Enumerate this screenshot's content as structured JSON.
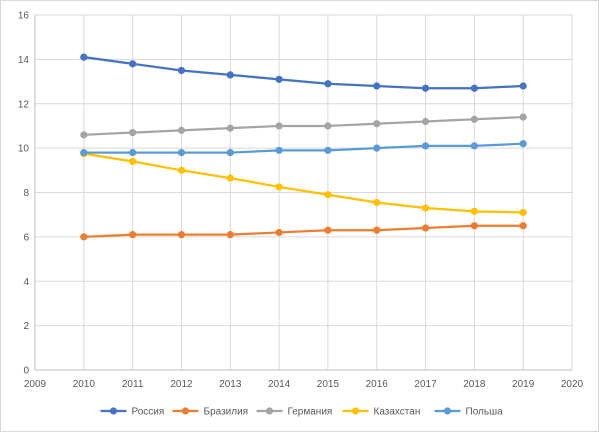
{
  "chart_data": {
    "type": "line",
    "title": "",
    "xlabel": "",
    "ylabel": "",
    "x": [
      2010,
      2011,
      2012,
      2013,
      2014,
      2015,
      2016,
      2017,
      2018,
      2019
    ],
    "xlim": [
      2009,
      2020
    ],
    "ylim": [
      0,
      16
    ],
    "x_ticks": [
      "2009",
      "2010",
      "2011",
      "2012",
      "2013",
      "2014",
      "2015",
      "2016",
      "2017",
      "2018",
      "2019",
      "2020"
    ],
    "y_ticks": [
      "0",
      "2",
      "4",
      "6",
      "8",
      "10",
      "12",
      "14",
      "16"
    ],
    "grid": "horizontal",
    "legend_position": "bottom",
    "series": [
      {
        "name": "Россия",
        "color": "#4472c4",
        "values": [
          14.1,
          13.8,
          13.5,
          13.3,
          13.1,
          12.9,
          12.8,
          12.7,
          12.7,
          12.8
        ]
      },
      {
        "name": "Бразилия",
        "color": "#ed7d31",
        "values": [
          6.0,
          6.1,
          6.1,
          6.1,
          6.2,
          6.3,
          6.3,
          6.4,
          6.5,
          6.5
        ]
      },
      {
        "name": "Германия",
        "color": "#a5a5a5",
        "values": [
          10.6,
          10.7,
          10.8,
          10.9,
          11.0,
          11.0,
          11.1,
          11.2,
          11.3,
          11.4
        ]
      },
      {
        "name": "Казахстан",
        "color": "#ffc000",
        "values": [
          9.75,
          9.4,
          9.0,
          8.65,
          8.25,
          7.9,
          7.55,
          7.3,
          7.15,
          7.1
        ]
      },
      {
        "name": "Польша",
        "color": "#5b9bd5",
        "values": [
          9.8,
          9.8,
          9.8,
          9.8,
          9.9,
          9.9,
          10.0,
          10.1,
          10.1,
          10.2
        ]
      }
    ]
  }
}
